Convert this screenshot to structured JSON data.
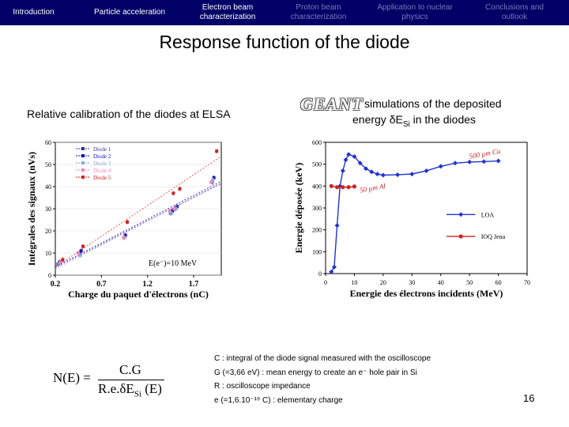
{
  "nav": {
    "items": [
      {
        "label": "Introduction",
        "dim": false
      },
      {
        "label": "Particle acceleration",
        "dim": false
      },
      {
        "label": "Electron beam characterization",
        "dim": false
      },
      {
        "label": "Proton beam characterization",
        "dim": true
      },
      {
        "label": "Application to nuclear physics",
        "dim": true
      },
      {
        "label": "Conclusions and outlook",
        "dim": true
      }
    ]
  },
  "title": "Response function of the diode",
  "left_subtitle": "Relative calibration of the diodes at ELSA",
  "right_logo": "GEANT",
  "right_subtitle_line1": "simulations of the deposited",
  "right_subtitle_line2": "energy δE",
  "right_subtitle_sub": "Si",
  "right_subtitle_tail": " in the diodes",
  "formula": {
    "lhs": "N(E) =",
    "numerator": "C.G",
    "denominator": "R.e.δE",
    "den_sub": "Si",
    "den_tail": " (E)"
  },
  "definitions": [
    "C : integral of the diode signal measured with the oscilloscope",
    "G (=3,66 eV) : mean energy to create an e⁻ hole pair in Si",
    "R : oscilloscope impedance",
    "e (=1,6.10⁻¹⁹ C) : elementary charge"
  ],
  "page_number": "16",
  "colors": {
    "nav_bg": "#000066",
    "loa": "#2233cc",
    "ioq": "#cc2222"
  },
  "chart_data": [
    {
      "type": "scatter",
      "title": "",
      "xlabel": "Charge du paquet d'électrons (nC)",
      "ylabel": "Intégrales des signaux (nVs)",
      "xlim": [
        0.2,
        2.0
      ],
      "ylim": [
        0,
        60
      ],
      "xticks": [
        "0.2",
        "0.7",
        "1.2",
        "1.7"
      ],
      "yticks": [
        "0",
        "10",
        "20",
        "30",
        "40",
        "50",
        "60"
      ],
      "annotation": "E(e⁻)=10 MeV",
      "legend_position": "top-left",
      "series": [
        {
          "name": "Diode 1",
          "color": "#333399",
          "x": [
            0.23,
            0.46,
            0.95,
            1.45,
            1.5,
            1.9
          ],
          "y": [
            5,
            10,
            17,
            28,
            30,
            42
          ]
        },
        {
          "name": "Diode 2",
          "color": "#1111bb",
          "x": [
            0.25,
            0.48,
            0.96,
            1.47,
            1.52,
            1.92
          ],
          "y": [
            6,
            11,
            18,
            29,
            31,
            44
          ]
        },
        {
          "name": "Diode 3",
          "color": "#88aadd",
          "x": [
            0.24,
            0.47,
            0.95,
            1.46,
            1.51,
            1.91
          ],
          "y": [
            5,
            9,
            17,
            28,
            30,
            43
          ]
        },
        {
          "name": "Diode 4",
          "color": "#ee88bb",
          "x": [
            0.26,
            0.45,
            0.94,
            1.44,
            1.49,
            1.89
          ],
          "y": [
            6,
            10,
            17,
            29,
            30,
            42
          ]
        },
        {
          "name": "Diode 5",
          "color": "#cc2222",
          "x": [
            0.28,
            0.5,
            0.98,
            1.48,
            1.55,
            1.95
          ],
          "y": [
            7,
            13,
            24,
            37,
            39,
            56
          ]
        }
      ]
    },
    {
      "type": "line",
      "title": "",
      "xlabel": "Energie des électrons incidents (MeV)",
      "ylabel": "Energie déposée (keV)",
      "xlim": [
        0,
        70
      ],
      "ylim": [
        0,
        600
      ],
      "xticks": [
        "0",
        "10",
        "20",
        "30",
        "40",
        "50",
        "60",
        "70"
      ],
      "yticks": [
        "0",
        "100",
        "200",
        "300",
        "400",
        "500",
        "600"
      ],
      "annotations": [
        "500 µm Cu",
        "50 µm Al"
      ],
      "legend_position": "bottom-right",
      "series": [
        {
          "name": "LOA",
          "color": "#2233cc",
          "x": [
            2,
            3,
            4,
            5,
            6,
            7,
            8,
            10,
            12,
            14,
            16,
            18,
            20,
            25,
            30,
            35,
            40,
            45,
            50,
            55,
            60
          ],
          "y": [
            8,
            30,
            220,
            400,
            470,
            520,
            545,
            535,
            505,
            480,
            465,
            455,
            450,
            452,
            455,
            470,
            490,
            505,
            510,
            512,
            515
          ]
        },
        {
          "name": "IOQ Jena",
          "color": "#cc2222",
          "x": [
            2,
            4,
            6,
            8,
            10
          ],
          "y": [
            400,
            395,
            395,
            395,
            398
          ]
        }
      ]
    }
  ]
}
